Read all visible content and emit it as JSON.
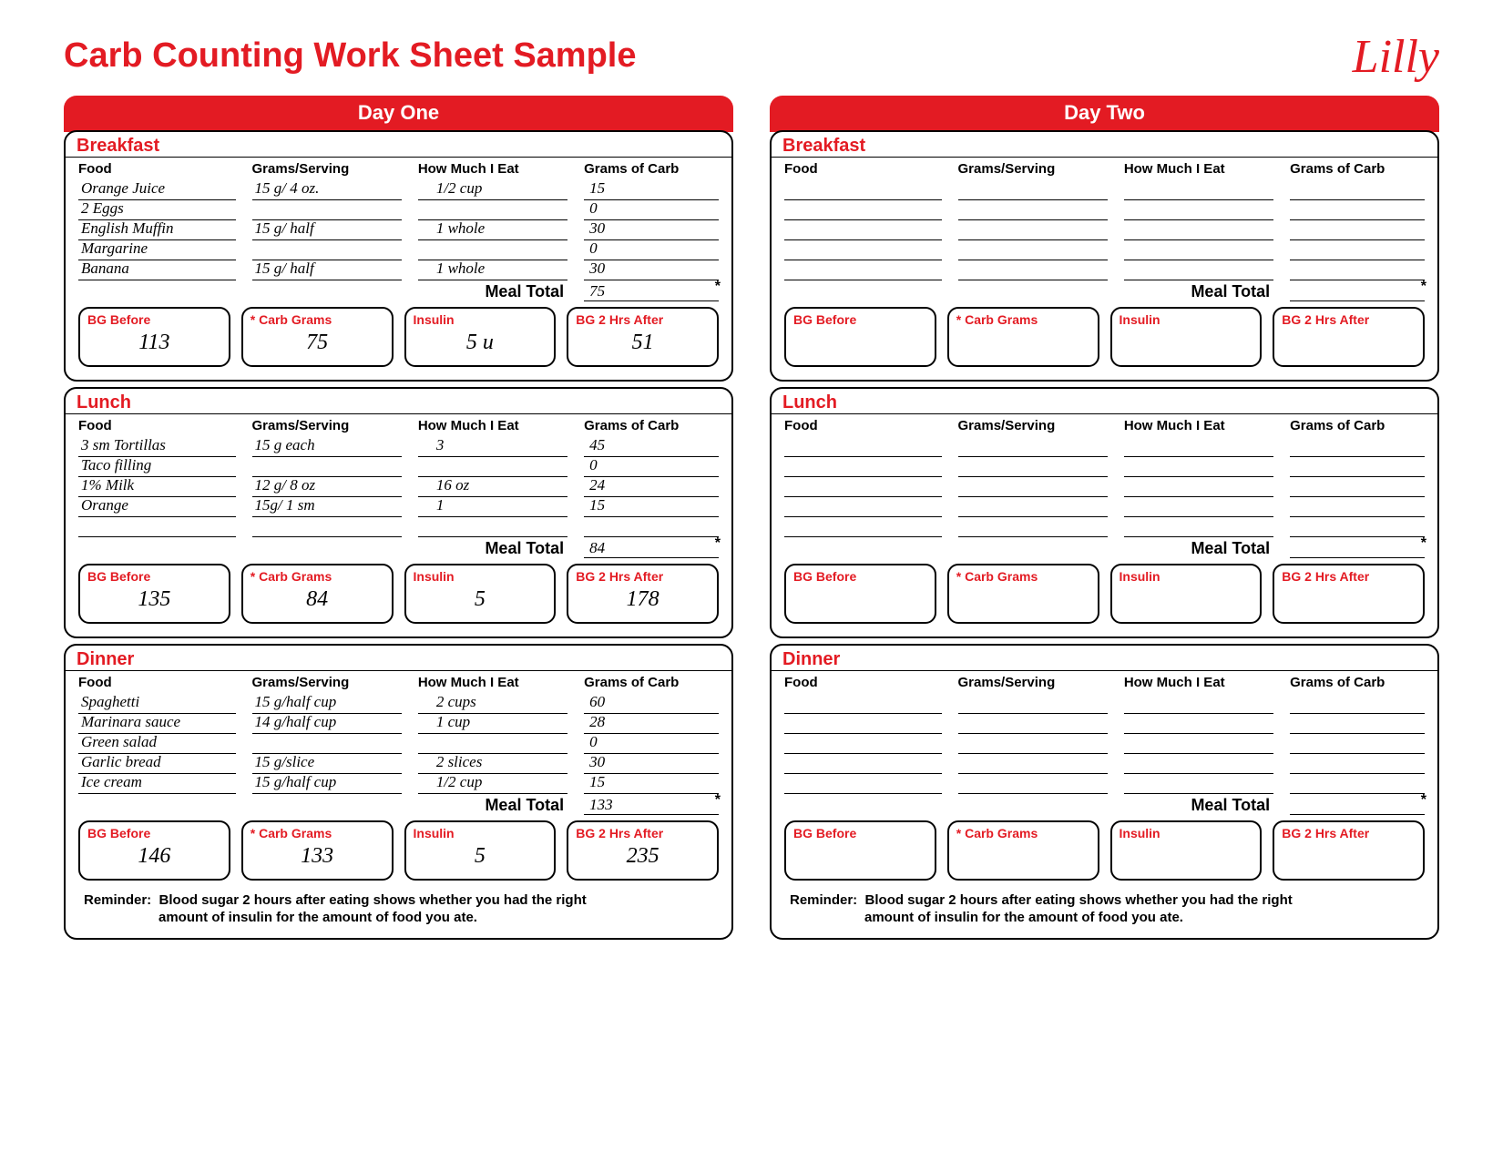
{
  "title": "Carb Counting Work Sheet Sample",
  "logo_text": "Lilly",
  "columns": [
    "Food",
    "Grams/Serving",
    "How Much I Eat",
    "Grams of Carb"
  ],
  "meal_total_label": "Meal Total",
  "stat_labels": [
    "BG Before",
    "* Carb Grams",
    "Insulin",
    "BG 2 Hrs After"
  ],
  "reminder_label": "Reminder:",
  "reminder_line1": "Blood sugar 2 hours after eating shows whether you had the right",
  "reminder_line2": "amount of insulin for the amount of food you ate.",
  "days": [
    {
      "title": "Day One",
      "meals": [
        {
          "name": "Breakfast",
          "rows": [
            [
              "Orange Juice",
              "15 g/ 4 oz.",
              "1/2 cup",
              "15"
            ],
            [
              "2 Eggs",
              "",
              "",
              "0"
            ],
            [
              "English Muffin",
              "15 g/ half",
              "1 whole",
              "30"
            ],
            [
              "Margarine",
              "",
              "",
              "0"
            ],
            [
              "Banana",
              "15 g/ half",
              "1 whole",
              "30"
            ]
          ],
          "total": "75",
          "stats": [
            "113",
            "75",
            "5 u",
            "51"
          ]
        },
        {
          "name": "Lunch",
          "rows": [
            [
              "3 sm Tortillas",
              "15 g each",
              "3",
              "45"
            ],
            [
              "Taco filling",
              "",
              "",
              "0"
            ],
            [
              "1% Milk",
              "12 g/ 8 oz",
              "16 oz",
              "24"
            ],
            [
              "Orange",
              "15g/ 1 sm",
              "1",
              "15"
            ],
            [
              "",
              "",
              "",
              ""
            ]
          ],
          "total": "84",
          "stats": [
            "135",
            "84",
            "5",
            "178"
          ]
        },
        {
          "name": "Dinner",
          "rows": [
            [
              "Spaghetti",
              "15 g/half cup",
              "2 cups",
              "60"
            ],
            [
              "Marinara sauce",
              "14 g/half cup",
              "1 cup",
              "28"
            ],
            [
              "Green salad",
              "",
              "",
              "0"
            ],
            [
              "Garlic bread",
              "15 g/slice",
              "2 slices",
              "30"
            ],
            [
              "Ice cream",
              "15 g/half cup",
              "1/2 cup",
              "15"
            ]
          ],
          "total": "133",
          "stats": [
            "146",
            "133",
            "5",
            "235"
          ]
        }
      ]
    },
    {
      "title": "Day Two",
      "meals": [
        {
          "name": "Breakfast",
          "rows": [
            [
              "",
              "",
              "",
              ""
            ],
            [
              "",
              "",
              "",
              ""
            ],
            [
              "",
              "",
              "",
              ""
            ],
            [
              "",
              "",
              "",
              ""
            ],
            [
              "",
              "",
              "",
              ""
            ]
          ],
          "total": "",
          "stats": [
            "",
            "",
            "",
            ""
          ]
        },
        {
          "name": "Lunch",
          "rows": [
            [
              "",
              "",
              "",
              ""
            ],
            [
              "",
              "",
              "",
              ""
            ],
            [
              "",
              "",
              "",
              ""
            ],
            [
              "",
              "",
              "",
              ""
            ],
            [
              "",
              "",
              "",
              ""
            ]
          ],
          "total": "",
          "stats": [
            "",
            "",
            "",
            ""
          ]
        },
        {
          "name": "Dinner",
          "rows": [
            [
              "",
              "",
              "",
              ""
            ],
            [
              "",
              "",
              "",
              ""
            ],
            [
              "",
              "",
              "",
              ""
            ],
            [
              "",
              "",
              "",
              ""
            ],
            [
              "",
              "",
              "",
              ""
            ]
          ],
          "total": "",
          "stats": [
            "",
            "",
            "",
            ""
          ]
        }
      ]
    }
  ]
}
